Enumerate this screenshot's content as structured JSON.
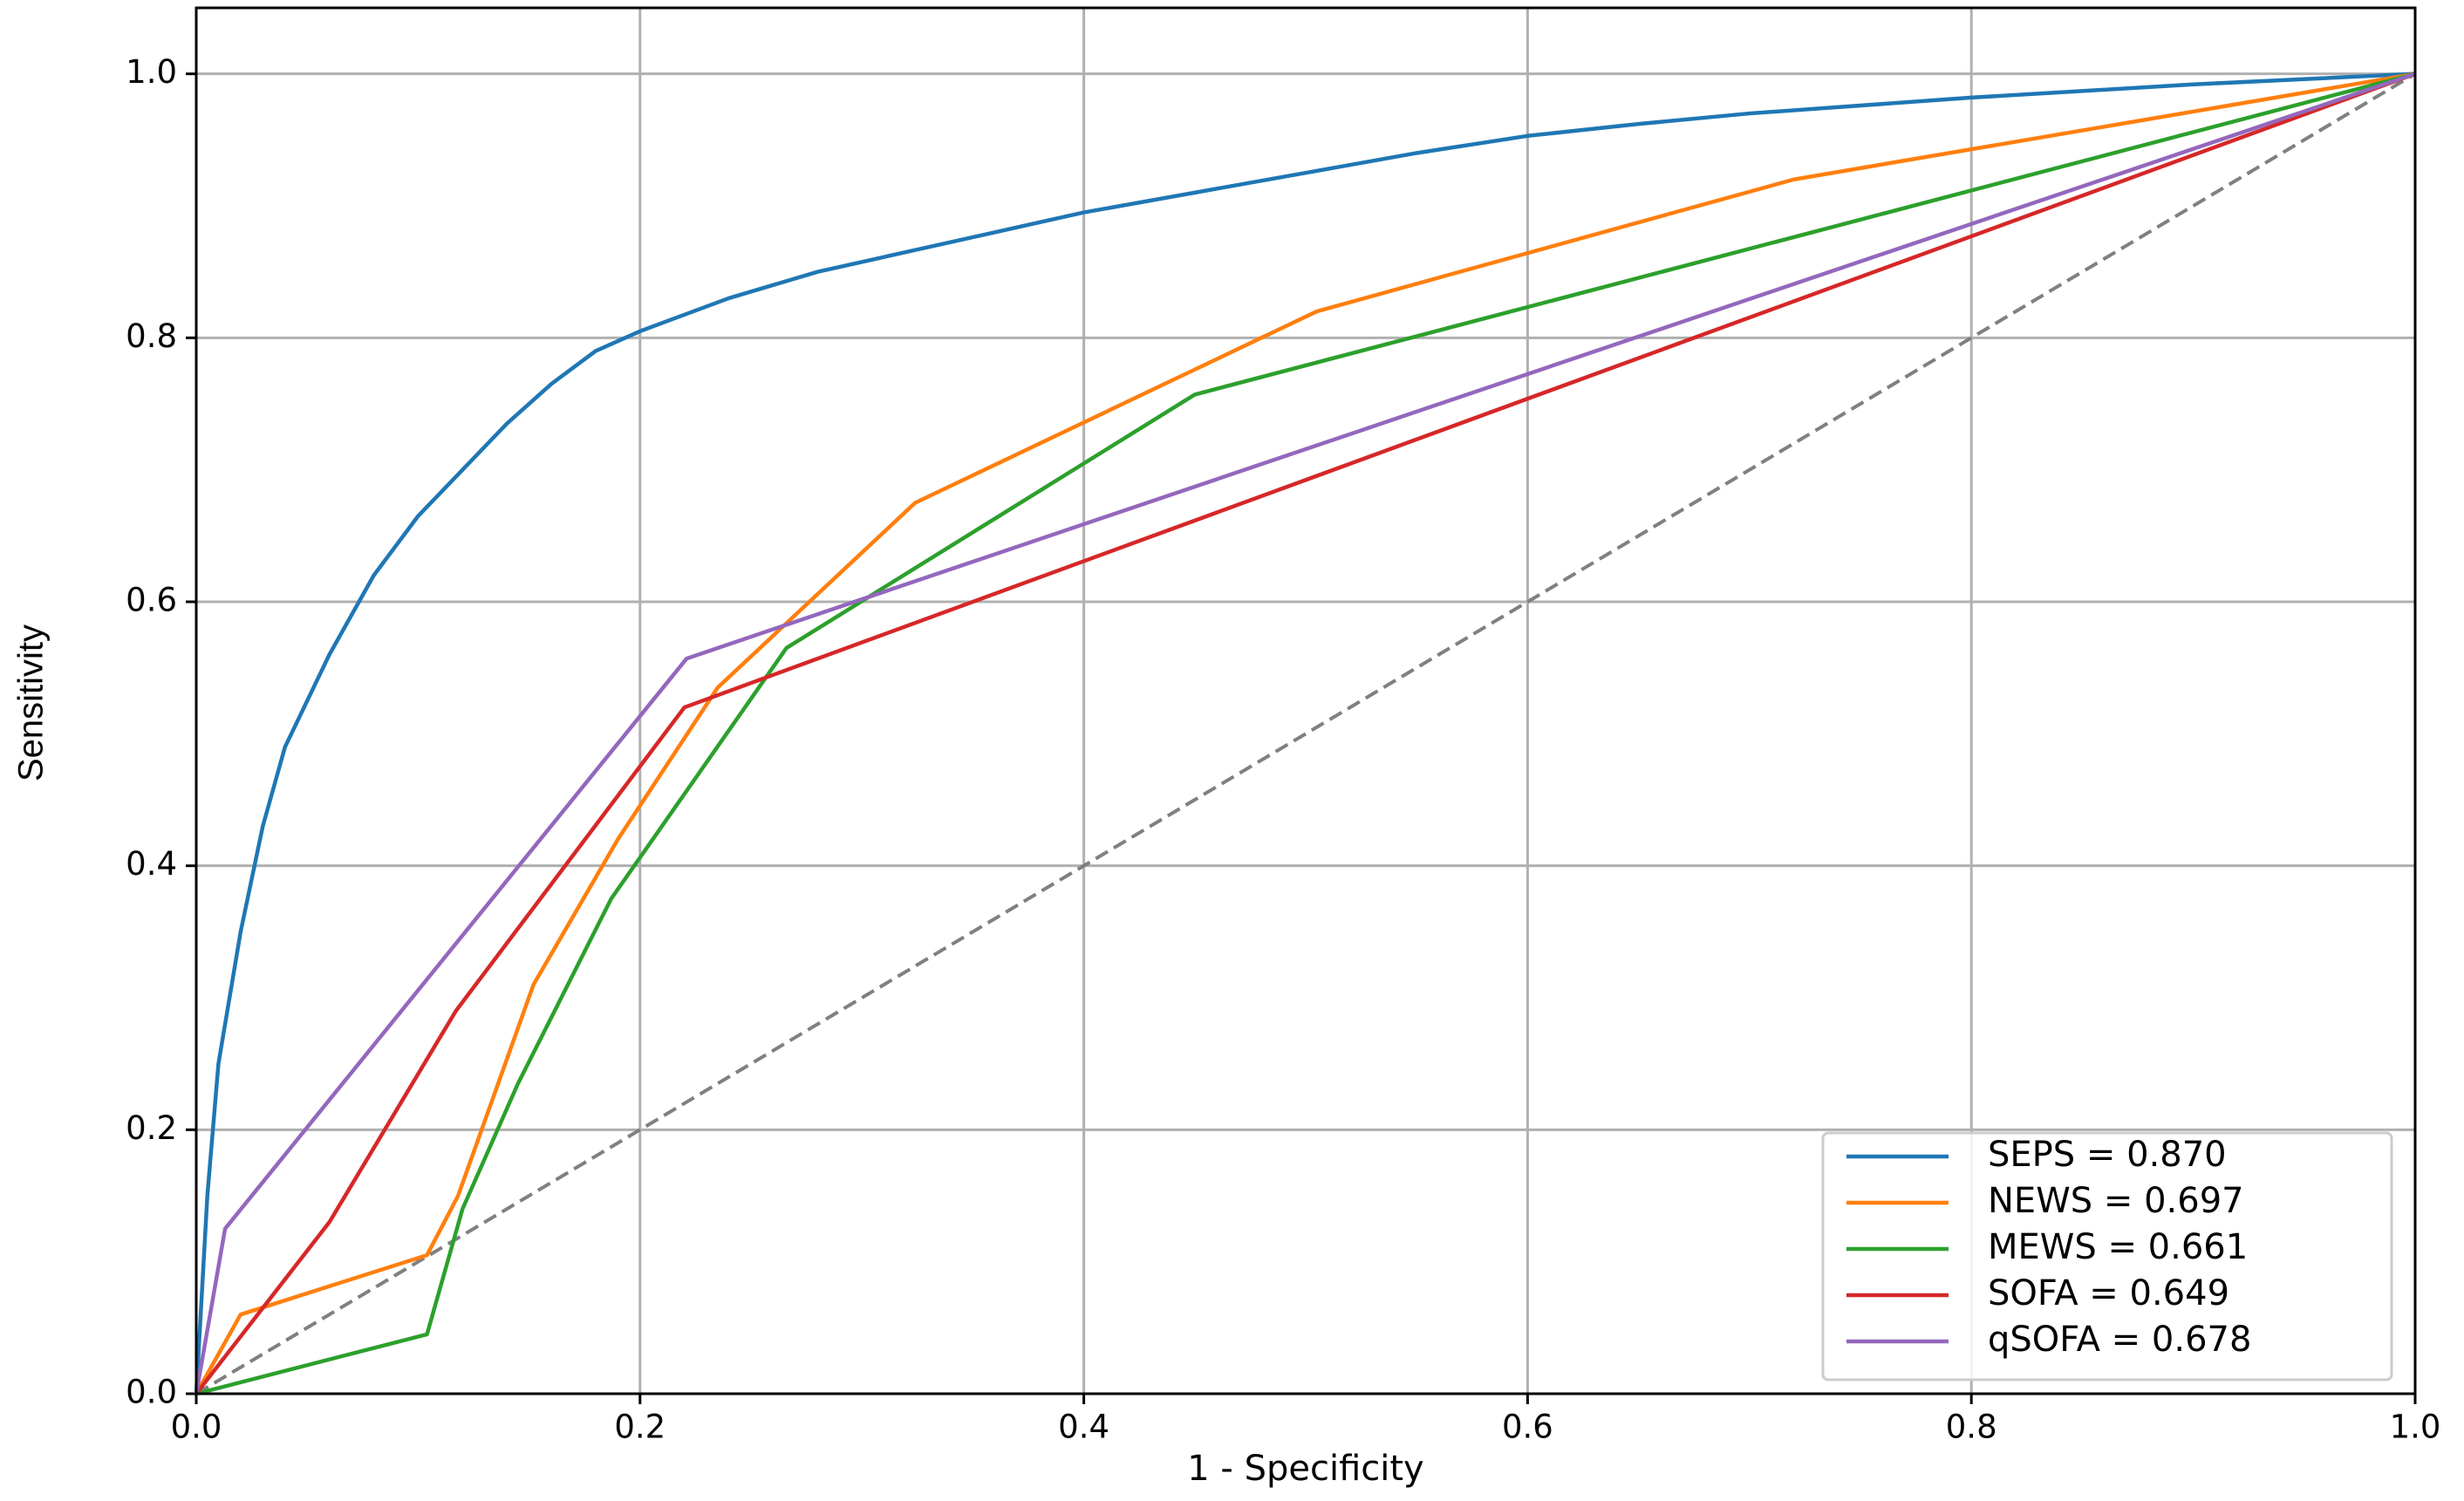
{
  "chart_data": {
    "type": "line",
    "xlabel": "1 - Specificity",
    "ylabel": "Sensitivity",
    "xlim": [
      0,
      1
    ],
    "ylim": [
      0,
      1.05
    ],
    "xticks": [
      {
        "value": 0,
        "label": "0.0"
      },
      0.2,
      0.4,
      0.6,
      0.8,
      {
        "value": 1,
        "label": "1.0"
      }
    ],
    "yticks": [
      {
        "value": 0,
        "label": "0.0"
      },
      0.2,
      0.4,
      0.6,
      0.8,
      {
        "value": 1,
        "label": "1.0"
      }
    ],
    "grid": true,
    "legend": "lower right",
    "series": [
      {
        "name": "SEPS = 0.870",
        "color": "#1f77b4",
        "x": [
          0,
          0.005,
          0.01,
          0.02,
          0.03,
          0.04,
          0.06,
          0.08,
          0.1,
          0.12,
          0.14,
          0.16,
          0.18,
          0.2,
          0.24,
          0.28,
          0.32,
          0.36,
          0.4,
          0.45,
          0.5,
          0.55,
          0.6,
          0.65,
          0.7,
          0.8,
          0.9,
          1
        ],
        "values": [
          0,
          0.15,
          0.25,
          0.35,
          0.43,
          0.49,
          0.56,
          0.62,
          0.665,
          0.7,
          0.735,
          0.765,
          0.79,
          0.805,
          0.83,
          0.85,
          0.865,
          0.88,
          0.895,
          0.91,
          0.925,
          0.94,
          0.953,
          0.962,
          0.97,
          0.982,
          0.992,
          1
        ]
      },
      {
        "name": "NEWS = 0.697",
        "color": "#ff7f0e",
        "x": [
          0,
          0.02,
          0.104,
          0.118,
          0.152,
          0.19,
          0.235,
          0.324,
          0.505,
          0.72,
          1
        ],
        "values": [
          0,
          0.06,
          0.105,
          0.15,
          0.31,
          0.42,
          0.535,
          0.675,
          0.82,
          0.92,
          1
        ]
      },
      {
        "name": "MEWS = 0.661",
        "color": "#2ca02c",
        "x": [
          0,
          0.104,
          0.12,
          0.145,
          0.187,
          0.266,
          0.45,
          1
        ],
        "values": [
          0,
          0.045,
          0.14,
          0.235,
          0.375,
          0.565,
          0.757,
          1
        ]
      },
      {
        "name": "SOFA = 0.649",
        "color": "#d62728",
        "x": [
          0,
          0.06,
          0.117,
          0.22,
          1
        ],
        "values": [
          0,
          0.13,
          0.29,
          0.52,
          1
        ]
      },
      {
        "name": "qSOFA = 0.678",
        "color": "#9467bd",
        "x": [
          0,
          0.013,
          0.221,
          1
        ],
        "values": [
          0,
          0.125,
          0.557,
          1
        ]
      }
    ]
  }
}
